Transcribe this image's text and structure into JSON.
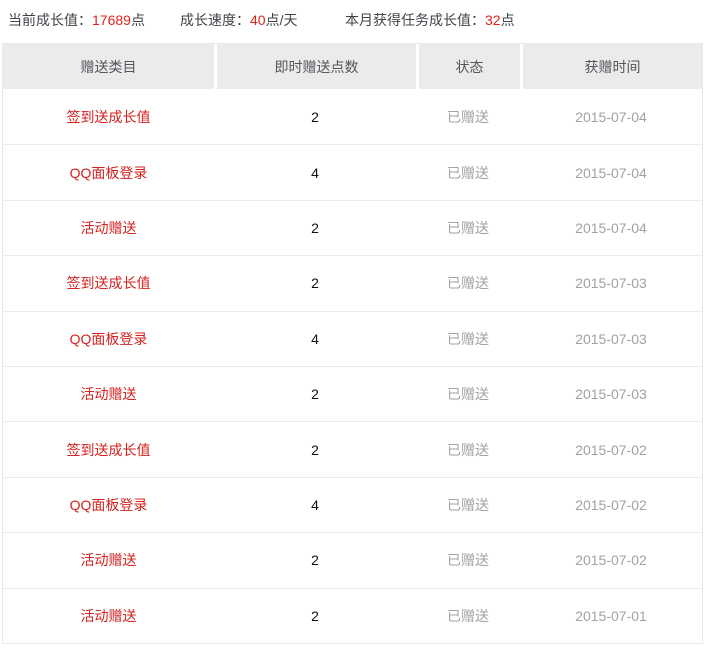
{
  "stats": {
    "current": {
      "label": "当前成长值：",
      "value": "17689",
      "unit": "点"
    },
    "speed": {
      "label": "成长速度：",
      "value": "40",
      "unit": "点/天"
    },
    "monthly": {
      "label": "本月获得任务成长值：",
      "value": "32",
      "unit": "点"
    }
  },
  "table": {
    "headers": {
      "category": "赠送类目",
      "points": "即时赠送点数",
      "status": "状态",
      "date": "获赠时间"
    },
    "rows": [
      {
        "category": "签到送成长值",
        "points": "2",
        "status": "已赠送",
        "date": "2015-07-04"
      },
      {
        "category": "QQ面板登录",
        "points": "4",
        "status": "已赠送",
        "date": "2015-07-04"
      },
      {
        "category": "活动赠送",
        "points": "2",
        "status": "已赠送",
        "date": "2015-07-04"
      },
      {
        "category": "签到送成长值",
        "points": "2",
        "status": "已赠送",
        "date": "2015-07-03"
      },
      {
        "category": "QQ面板登录",
        "points": "4",
        "status": "已赠送",
        "date": "2015-07-03"
      },
      {
        "category": "活动赠送",
        "points": "2",
        "status": "已赠送",
        "date": "2015-07-03"
      },
      {
        "category": "签到送成长值",
        "points": "2",
        "status": "已赠送",
        "date": "2015-07-02"
      },
      {
        "category": "QQ面板登录",
        "points": "4",
        "status": "已赠送",
        "date": "2015-07-02"
      },
      {
        "category": "活动赠送",
        "points": "2",
        "status": "已赠送",
        "date": "2015-07-02"
      },
      {
        "category": "活动赠送",
        "points": "2",
        "status": "已赠送",
        "date": "2015-07-01"
      }
    ]
  },
  "colors": {
    "accent_red": "#e2231a",
    "header_bg": "#ebebeb",
    "muted_gray": "#a2a2a2",
    "border": "#e8e8e8"
  }
}
